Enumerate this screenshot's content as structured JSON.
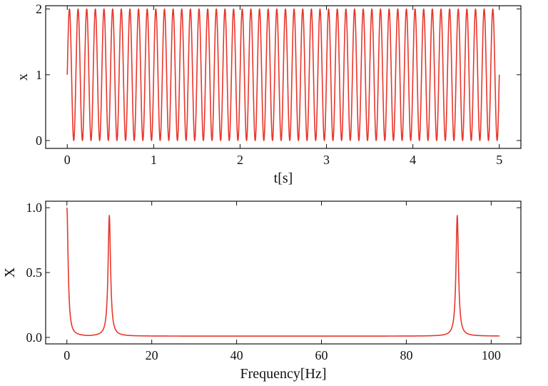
{
  "colors": {
    "series": "#e8372c",
    "axis": "#111111",
    "background": "#ffffff"
  },
  "chart_data": [
    {
      "type": "line",
      "title": "",
      "xlabel": "t[s]",
      "ylabel": "x",
      "xlim": [
        -0.25,
        5.25
      ],
      "ylim": [
        -0.12,
        2.05
      ],
      "xticks": [
        0,
        1,
        2,
        3,
        4,
        5
      ],
      "yticks": [
        0,
        1,
        2
      ],
      "xtick_labels": [
        "0",
        "1",
        "2",
        "3",
        "4",
        "5"
      ],
      "ytick_labels": [
        "0",
        "1",
        "2"
      ],
      "grid": false,
      "series": [
        {
          "function": "x = 1 + sin(2π·10·t)",
          "frequency_hz": 10,
          "offset": 1,
          "amplitude": 1,
          "t_range": [
            0,
            5
          ]
        }
      ]
    },
    {
      "type": "line",
      "title": "",
      "xlabel": "Frequency[Hz]",
      "ylabel": "X",
      "xlim": [
        -5,
        107
      ],
      "ylim": [
        -0.05,
        1.05
      ],
      "xticks": [
        0,
        20,
        40,
        60,
        80,
        100
      ],
      "yticks": [
        0.0,
        0.5,
        1.0
      ],
      "xtick_labels": [
        "0",
        "20",
        "40",
        "60",
        "80",
        "100"
      ],
      "ytick_labels": [
        "0.0",
        "0.5",
        "1.0"
      ],
      "grid": false,
      "series": [
        {
          "x_range": [
            0,
            102
          ],
          "baseline": 0.01,
          "peaks": [
            {
              "x": 0,
              "y": 1.0
            },
            {
              "x": 10,
              "y": 0.94
            },
            {
              "x": 92,
              "y": 0.94
            }
          ]
        }
      ]
    }
  ]
}
